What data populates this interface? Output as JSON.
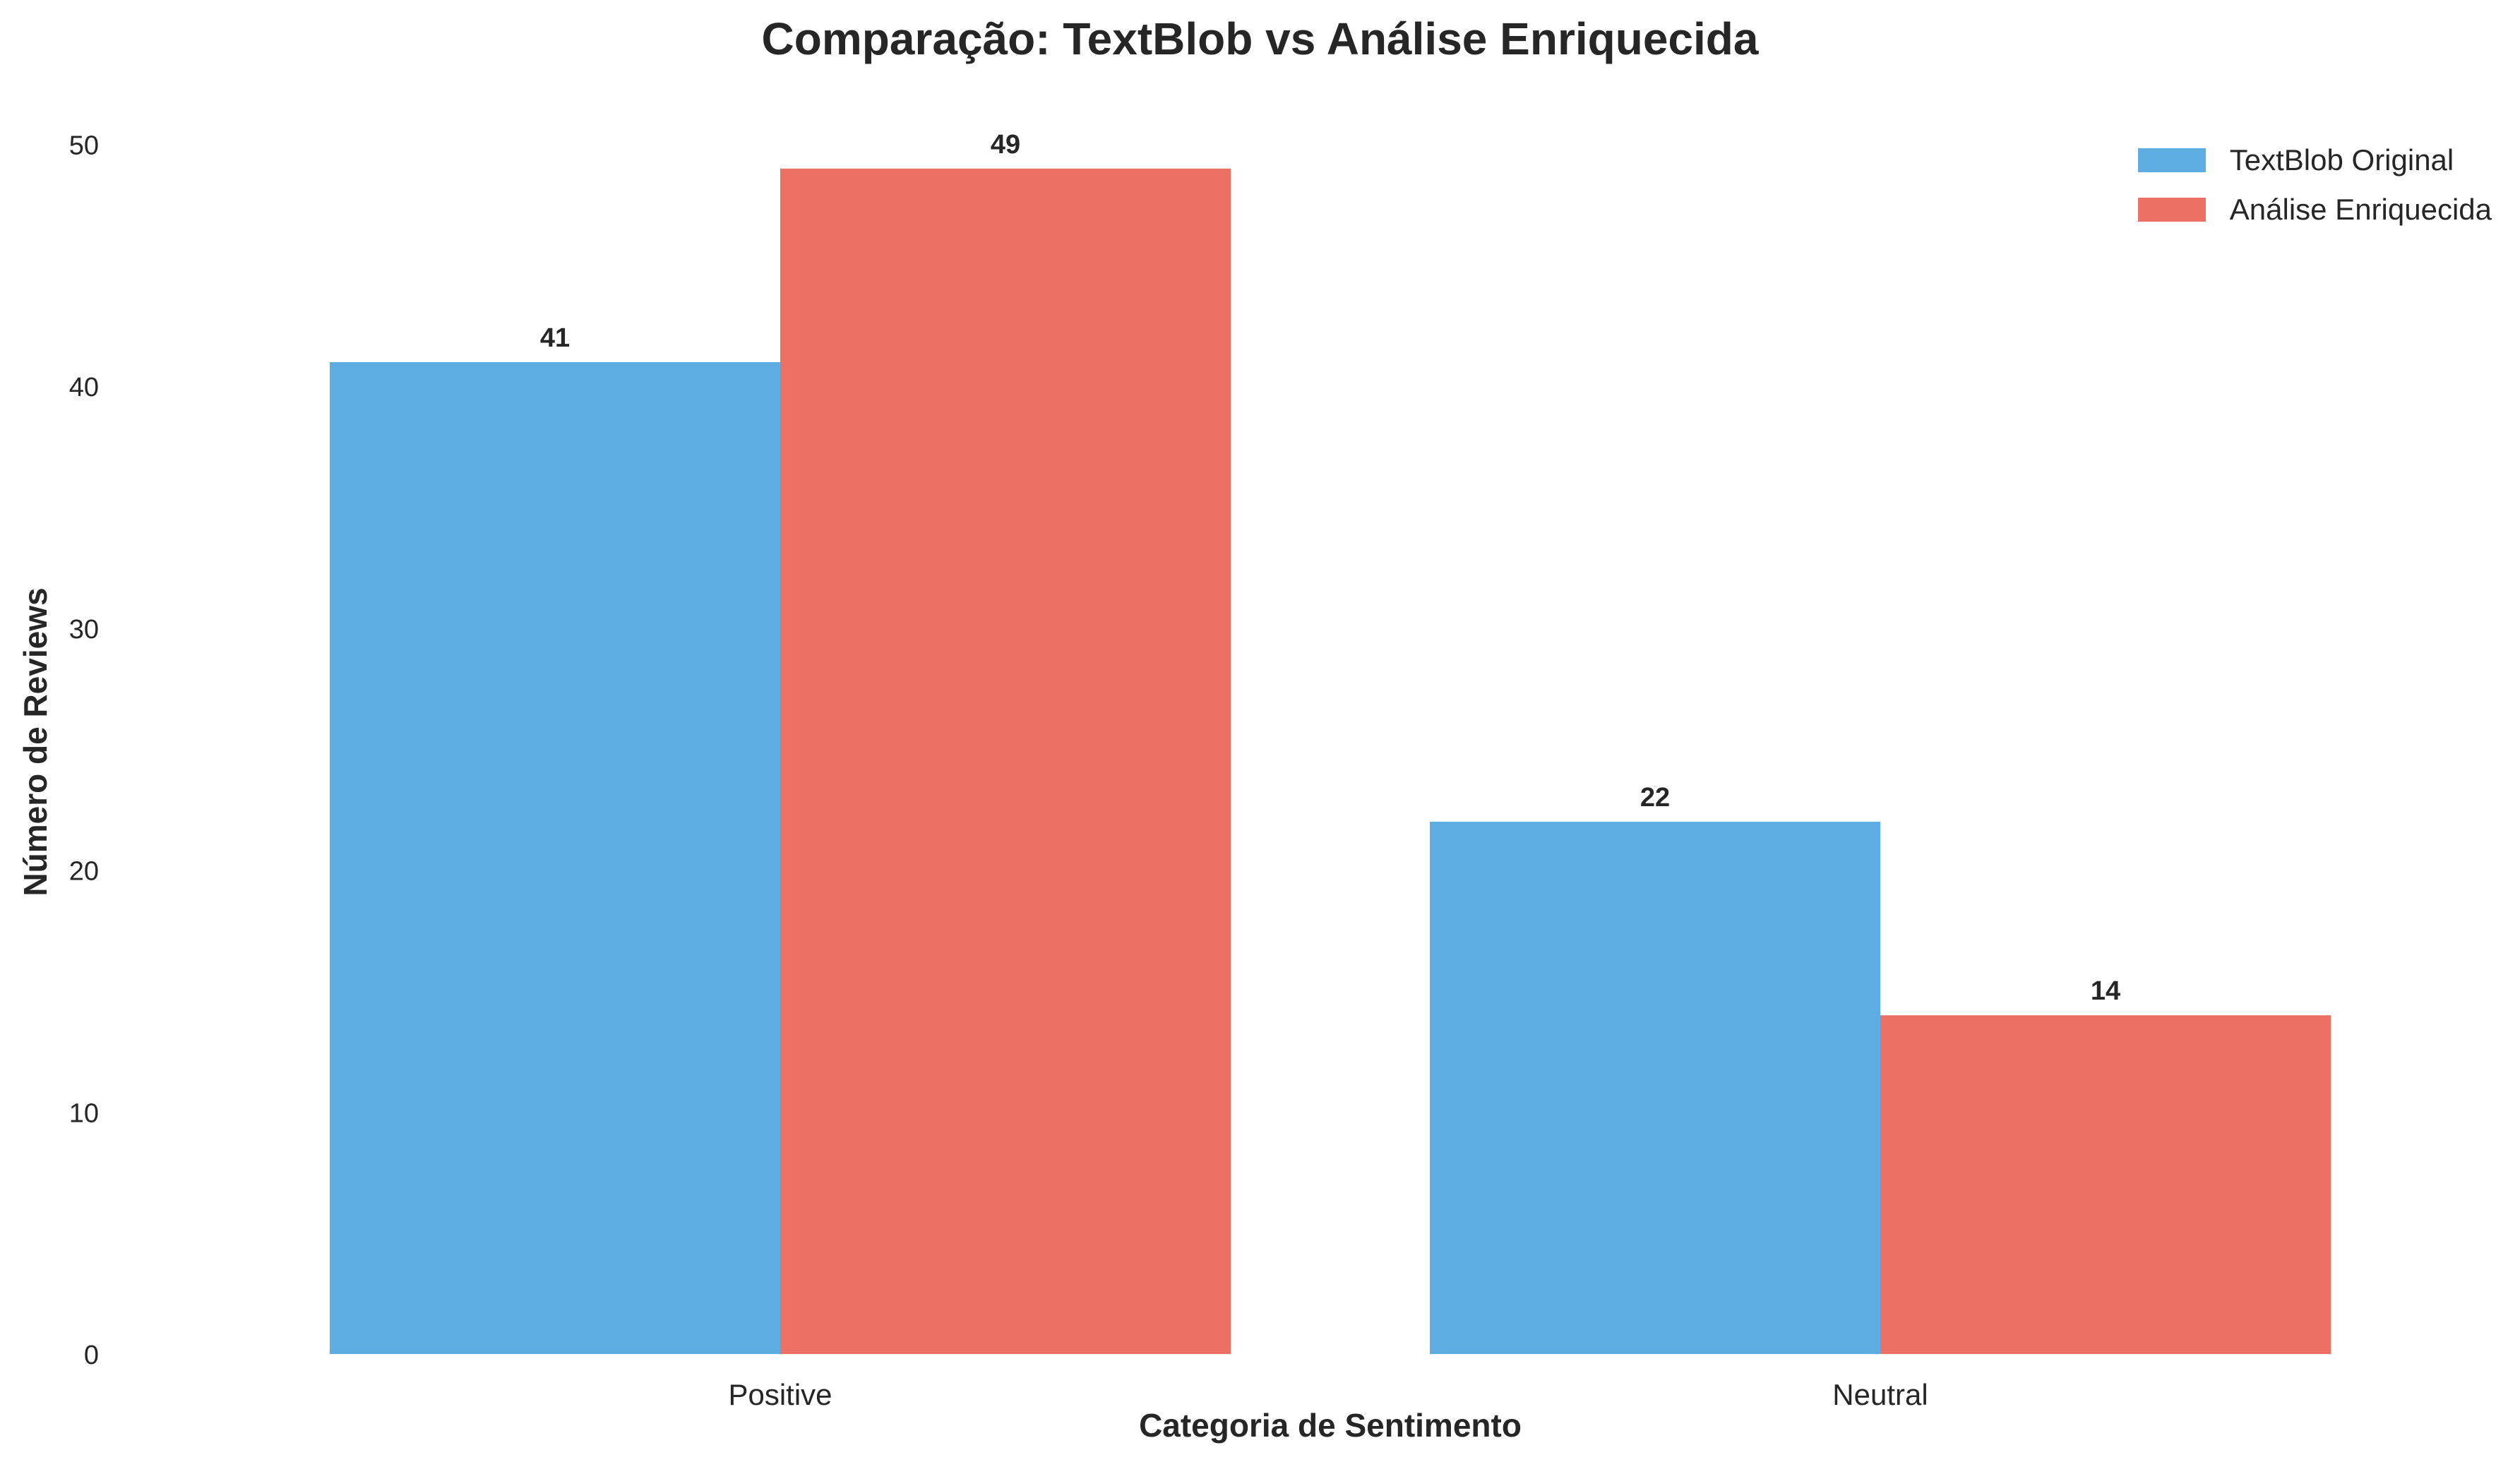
{
  "chart_data": {
    "type": "bar",
    "title": "Comparação: TextBlob vs Análise Enriquecida",
    "xlabel": "Categoria de Sentimento",
    "ylabel": "Número de Reviews",
    "categories": [
      "Positive",
      "Neutral"
    ],
    "series": [
      {
        "name": "TextBlob Original",
        "values": [
          41,
          22
        ],
        "color": "#5DADE2"
      },
      {
        "name": "Análise Enriquecida",
        "values": [
          49,
          14
        ],
        "color": "#EC7063"
      }
    ],
    "ylim": [
      0,
      52
    ],
    "yticks": [
      "0",
      "10",
      "20",
      "30",
      "40",
      "50"
    ],
    "data_labels": true,
    "grid": false,
    "legend_position": "top-right"
  }
}
